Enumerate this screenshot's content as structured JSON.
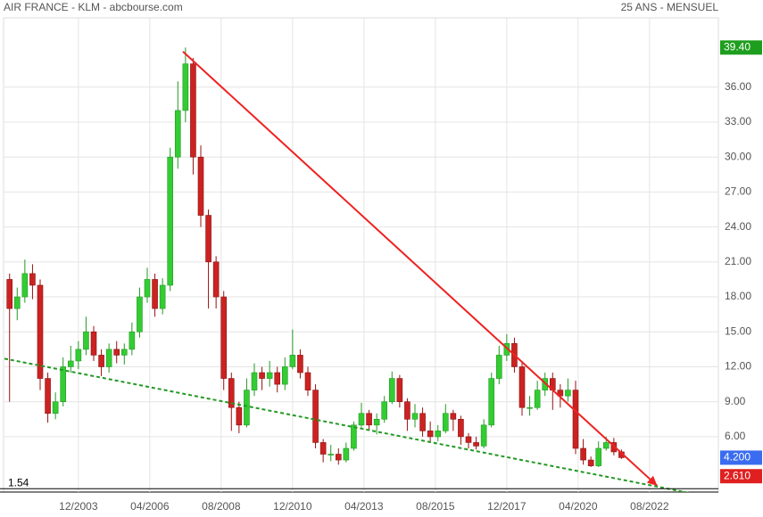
{
  "chart_data": {
    "type": "candlestick",
    "title": "AIR FRANCE - KLM - abcbourse.com",
    "subtitle": "25 ANS - MENSUEL",
    "x": [
      "09/2001",
      "12/2001",
      "03/2002",
      "06/2002",
      "09/2002",
      "12/2002",
      "03/2003",
      "06/2003",
      "09/2003",
      "12/2003",
      "03/2004",
      "06/2004",
      "09/2004",
      "12/2004",
      "03/2005",
      "06/2005",
      "09/2005",
      "12/2005",
      "03/2006",
      "06/2006",
      "09/2006",
      "12/2006",
      "03/2007",
      "06/2007",
      "09/2007",
      "12/2007",
      "03/2008",
      "06/2008",
      "09/2008",
      "12/2008",
      "03/2009",
      "06/2009",
      "09/2009",
      "12/2009",
      "03/2010",
      "06/2010",
      "09/2010",
      "12/2010",
      "03/2011",
      "06/2011",
      "09/2011",
      "12/2011",
      "03/2012",
      "06/2012",
      "09/2012",
      "12/2012",
      "03/2013",
      "06/2013",
      "09/2013",
      "12/2013",
      "03/2014",
      "06/2014",
      "09/2014",
      "12/2014",
      "03/2015",
      "06/2015",
      "09/2015",
      "12/2015",
      "03/2016",
      "06/2016",
      "09/2016",
      "12/2016",
      "03/2017",
      "06/2017",
      "09/2017",
      "12/2017",
      "03/2018",
      "06/2018",
      "09/2018",
      "12/2018",
      "03/2019",
      "06/2019",
      "09/2019",
      "12/2019",
      "03/2020",
      "06/2020",
      "09/2020",
      "12/2020",
      "03/2021",
      "06/2021",
      "09/2021"
    ],
    "open": [
      19.5,
      17,
      18,
      20,
      19,
      11,
      8,
      9,
      12,
      12.5,
      13.5,
      15,
      13,
      12,
      13.5,
      13,
      13.5,
      15,
      18,
      19.5,
      17,
      19,
      30,
      34,
      38,
      30,
      25,
      21,
      18,
      11,
      8.5,
      7,
      10,
      11.5,
      11,
      11.5,
      10.5,
      12,
      13,
      11.5,
      10,
      5.5,
      4.5,
      4.5,
      4,
      5,
      7,
      8,
      7,
      7.5,
      9,
      11,
      9,
      7.5,
      8,
      6.5,
      6,
      6.5,
      8,
      7.5,
      6,
      5.5,
      5.2,
      7,
      11,
      13,
      14,
      12,
      8.5,
      8.5,
      10,
      11,
      10,
      9.5,
      10,
      5,
      4,
      3.5,
      5,
      5.5,
      4.7
    ],
    "high": [
      20,
      18.8,
      21.2,
      20.8,
      19.5,
      11.5,
      9.8,
      12.8,
      13.8,
      14.2,
      16.3,
      15.5,
      13.5,
      14,
      14.2,
      14,
      15.8,
      18.8,
      20.5,
      20,
      19.6,
      30.8,
      36.5,
      39.4,
      38.5,
      31,
      25.5,
      21.5,
      18.5,
      11.5,
      9,
      11,
      12.3,
      12,
      12.5,
      12,
      12.8,
      15.2,
      13.5,
      12,
      10.5,
      5.8,
      5.3,
      5,
      5.5,
      7.3,
      8.9,
      8.3,
      8,
      9.5,
      11.6,
      11.3,
      9.3,
      8.8,
      8.5,
      7.3,
      7,
      8.8,
      8.3,
      7.8,
      6.3,
      6,
      7.5,
      11.5,
      13.8,
      14.8,
      14.5,
      12.5,
      9.5,
      10.8,
      11.5,
      11.5,
      10.5,
      11,
      10.8,
      5.8,
      4.3,
      5.6,
      6,
      5.9,
      4.9
    ],
    "low": [
      9,
      16,
      17.5,
      17.8,
      10,
      7.2,
      7.5,
      8.6,
      11.5,
      11.8,
      13,
      12.5,
      11.2,
      11.5,
      12.3,
      12.2,
      13,
      14.5,
      17.5,
      16.3,
      16.5,
      18.5,
      29,
      33,
      28.5,
      24,
      17,
      17,
      10,
      6.5,
      6.3,
      6.8,
      9.5,
      10,
      10.3,
      9.8,
      10,
      11.8,
      11,
      9.5,
      5,
      3.8,
      3.9,
      3.6,
      3.8,
      4.8,
      6.8,
      6.5,
      6.2,
      7.2,
      8.8,
      8.5,
      6.5,
      6.8,
      6,
      5.5,
      5.6,
      6.3,
      6.5,
      5.3,
      5,
      4.9,
      5,
      6.8,
      10.5,
      12.5,
      11.5,
      7.8,
      7.8,
      8.3,
      9.5,
      8.3,
      8.5,
      9,
      4.5,
      3.6,
      3.4,
      3.4,
      4.8,
      4.4,
      4.1
    ],
    "close": [
      17,
      18,
      20,
      19,
      11,
      8,
      9,
      12,
      12.5,
      13.5,
      15,
      13,
      12,
      13.5,
      13,
      13.5,
      15,
      18,
      19.5,
      17,
      19,
      30,
      34,
      38,
      30,
      25,
      21,
      18,
      11,
      8.5,
      7,
      10,
      11.5,
      11,
      11.5,
      10.5,
      12,
      13,
      11.5,
      10,
      5.5,
      4.5,
      4.5,
      4,
      5,
      7,
      8,
      7,
      7.5,
      9,
      11,
      9,
      7.5,
      8,
      6.5,
      6,
      6.5,
      8,
      7.5,
      6,
      5.5,
      5.2,
      7,
      11,
      13,
      14,
      12,
      8.5,
      8.5,
      10,
      11,
      10,
      9.5,
      10,
      5,
      4,
      3.5,
      5,
      5.5,
      4.7,
      4.2
    ],
    "up_color": "#33cc33",
    "down_color": "#cc2222",
    "xlim": [
      "07/2001",
      "11/2024"
    ],
    "xticks": [
      "12/2003",
      "04/2006",
      "08/2008",
      "12/2010",
      "04/2013",
      "08/2015",
      "12/2017",
      "04/2020",
      "08/2022"
    ],
    "ylim": [
      1.25,
      41.95
    ],
    "yticks": [
      {
        "value": 6,
        "label": "6.00"
      },
      {
        "value": 9,
        "label": "9.00"
      },
      {
        "value": 12,
        "label": "12.00"
      },
      {
        "value": 15,
        "label": "15.00"
      },
      {
        "value": 18,
        "label": "18.00"
      },
      {
        "value": 21,
        "label": "21.00"
      },
      {
        "value": 24,
        "label": "24.00"
      },
      {
        "value": 27,
        "label": "27.00"
      },
      {
        "value": 30,
        "label": "30.00"
      },
      {
        "value": 33,
        "label": "33.00"
      },
      {
        "value": 36,
        "label": "36.00"
      }
    ],
    "grid": true,
    "price_labels": [
      {
        "value": 39.4,
        "label": "39.40",
        "color": "#1e9e1e"
      },
      {
        "value": 4.2,
        "label": "4.200",
        "color": "#3a6cf0"
      },
      {
        "value": 2.61,
        "label": "2.610",
        "color": "#e02020"
      }
    ],
    "low_line": {
      "value": 1.54,
      "label": "1.54"
    },
    "trendlines": [
      {
        "x": [
          "05/2007",
          "11/2022"
        ],
        "y": [
          39.05,
          1.79
        ],
        "color": "#ee2222",
        "style": "solid",
        "arrow": true
      },
      {
        "x": [
          "07/2001",
          "06/2024"
        ],
        "y": [
          12.7,
          0.9
        ],
        "color": "#229922",
        "style": "dotted",
        "arrow": false
      }
    ]
  }
}
